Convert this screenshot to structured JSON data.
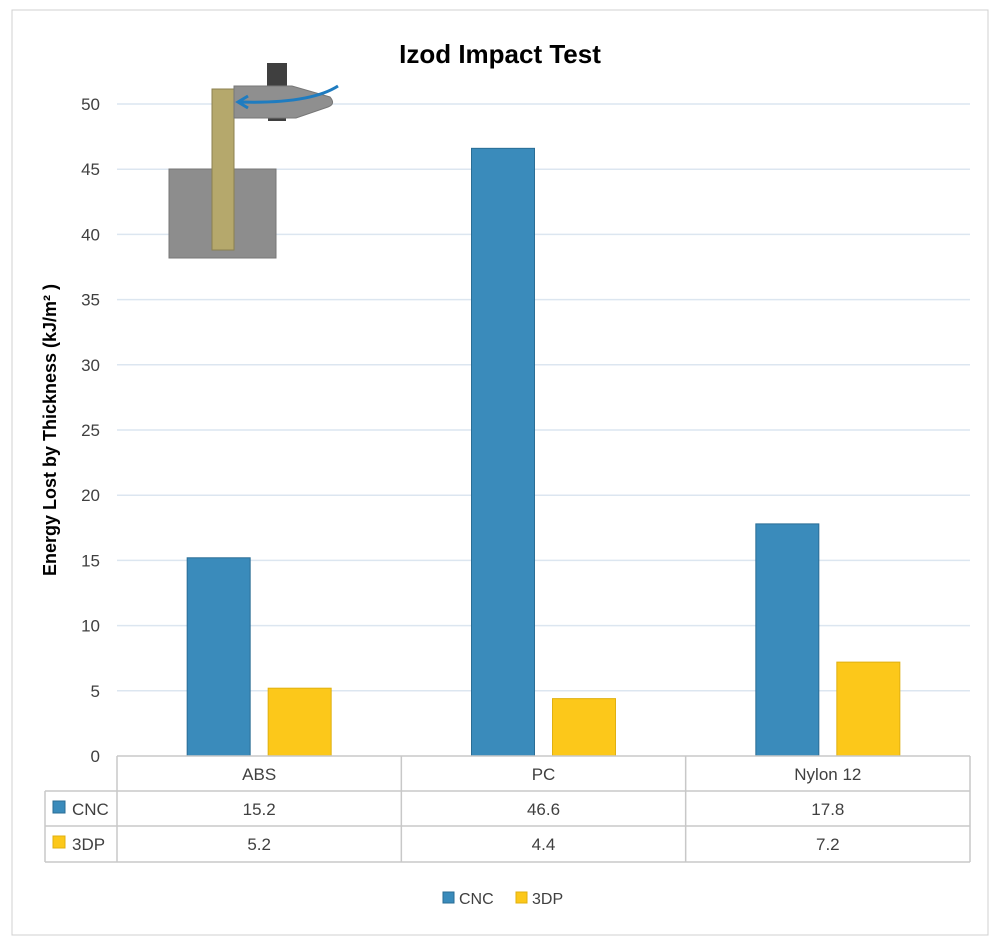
{
  "chart_data": {
    "type": "bar",
    "title": "Izod Impact Test",
    "xlabel": "",
    "ylabel": "Energy Lost by Thickness (kJ/m² )",
    "ylim": [
      0,
      50
    ],
    "yticks": [
      0,
      5,
      10,
      15,
      20,
      25,
      30,
      35,
      40,
      45,
      50
    ],
    "grid": true,
    "legend_position": "bottom",
    "categories": [
      "ABS",
      "PC",
      "Nylon 12"
    ],
    "series": [
      {
        "name": "CNC",
        "values": [
          15.2,
          46.6,
          17.8
        ],
        "color": "#3a8bbb"
      },
      {
        "name": "3DP",
        "values": [
          5.2,
          4.4,
          7.2
        ],
        "color": "#fcc81a"
      }
    ],
    "data_table": true,
    "inset_illustration": "izod-pendulum-impact-diagram"
  }
}
